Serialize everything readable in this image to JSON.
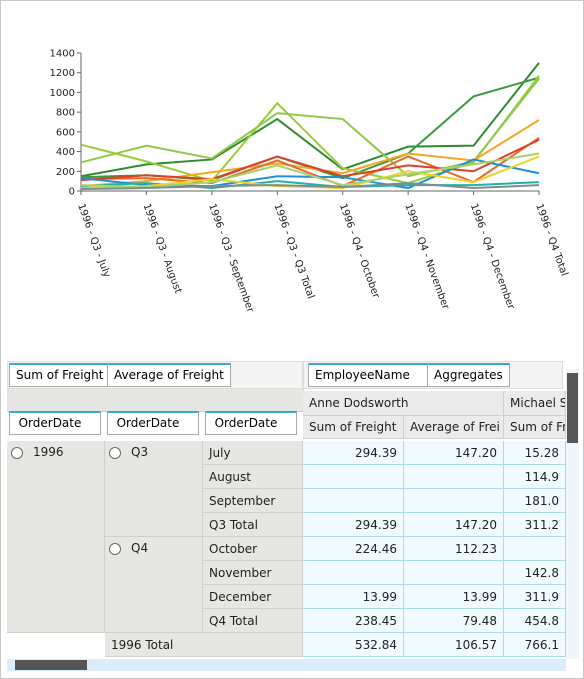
{
  "chart_data": {
    "type": "line",
    "categories": [
      "1996 - Q3 - July",
      "1996 - Q3 - August",
      "1996 - Q3 - September",
      "1996 - Q3 - Q3 Total",
      "1996 - Q4 - October",
      "1996 - Q4 - November",
      "1996 - Q4 - December",
      "1996 - Q4 Total"
    ],
    "ylim": [
      0,
      1400
    ],
    "yticks": [
      0,
      200,
      400,
      600,
      800,
      1000,
      1200,
      1400
    ],
    "series": [
      {
        "color": "#2e8b2e",
        "values": [
          150,
          270,
          320,
          730,
          220,
          450,
          460,
          1300
        ]
      },
      {
        "color": "#3a9a3a",
        "values": [
          140,
          160,
          110,
          350,
          130,
          380,
          960,
          1150
        ]
      },
      {
        "color": "#9acd32",
        "values": [
          470,
          300,
          100,
          890,
          230,
          80,
          290,
          1170
        ]
      },
      {
        "color": "#8fc84a",
        "values": [
          290,
          460,
          330,
          790,
          730,
          150,
          300,
          1140
        ]
      },
      {
        "color": "#f5a623",
        "values": [
          50,
          100,
          190,
          280,
          180,
          380,
          310,
          720
        ]
      },
      {
        "color": "#e8692a",
        "values": [
          120,
          130,
          80,
          310,
          50,
          350,
          90,
          540
        ]
      },
      {
        "color": "#d9412b",
        "values": [
          110,
          160,
          120,
          350,
          150,
          260,
          200,
          520
        ]
      },
      {
        "color": "#1f8fd6",
        "values": [
          130,
          60,
          50,
          150,
          140,
          30,
          320,
          180
        ]
      },
      {
        "color": "#20b2aa",
        "values": [
          50,
          80,
          30,
          100,
          40,
          60,
          60,
          90
        ]
      },
      {
        "color": "#f2d024",
        "values": [
          30,
          50,
          120,
          50,
          30,
          200,
          90,
          350
        ]
      },
      {
        "color": "#a6d36b",
        "values": [
          60,
          40,
          90,
          260,
          60,
          170,
          270,
          380
        ]
      },
      {
        "color": "#7f8c8d",
        "values": [
          20,
          30,
          50,
          60,
          40,
          80,
          30,
          60
        ]
      }
    ]
  },
  "pivot": {
    "data_fields": [
      "Sum of Freight",
      "Average of Freight"
    ],
    "column_fields": [
      "EmployeeName",
      "Aggregates"
    ],
    "row_fields": [
      "OrderDate",
      "OrderDate",
      "OrderDate"
    ],
    "column_headers": [
      "Anne Dodsworth",
      "Michael Su"
    ],
    "measure_headers": [
      "Sum of Freight",
      "Average of Frei",
      "Sum of Fre"
    ],
    "year": "1996",
    "quarters": [
      "Q3",
      "Q4"
    ],
    "rows": [
      {
        "label": "July",
        "cells": [
          "294.39",
          "147.20",
          "15.28"
        ]
      },
      {
        "label": "August",
        "cells": [
          null,
          null,
          "114.9"
        ]
      },
      {
        "label": "September",
        "cells": [
          null,
          null,
          "181.0"
        ]
      },
      {
        "label": "Q3 Total",
        "cells": [
          "294.39",
          "147.20",
          "311.2"
        ]
      },
      {
        "label": "October",
        "cells": [
          "224.46",
          "112.23",
          null
        ]
      },
      {
        "label": "November",
        "cells": [
          null,
          null,
          "142.8"
        ]
      },
      {
        "label": "December",
        "cells": [
          "13.99",
          "13.99",
          "311.9"
        ]
      },
      {
        "label": "Q4 Total",
        "cells": [
          "238.45",
          "79.48",
          "454.8"
        ]
      },
      {
        "label": "1996 Total",
        "cells": [
          "532.84",
          "106.57",
          "766.1"
        ]
      }
    ]
  }
}
